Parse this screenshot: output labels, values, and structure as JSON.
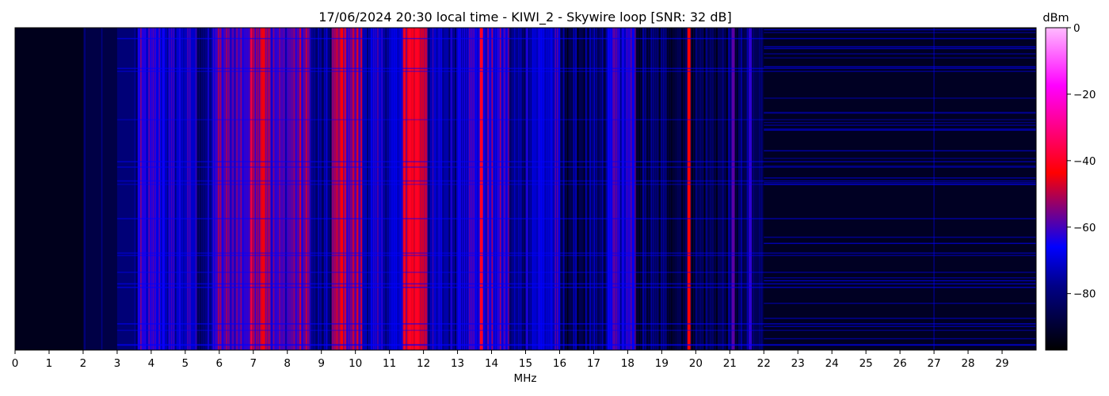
{
  "chart_data": {
    "type": "heatmap",
    "title": "17/06/2024 20:30 local time - KIWI_2 - Skywire loop [SNR: 32 dB]",
    "xlabel": "MHz",
    "ylabel": "",
    "xlim": [
      0,
      30
    ],
    "x_ticks": [
      "0",
      "1",
      "2",
      "3",
      "4",
      "5",
      "6",
      "7",
      "8",
      "9",
      "10",
      "11",
      "12",
      "13",
      "14",
      "15",
      "16",
      "17",
      "18",
      "19",
      "20",
      "21",
      "22",
      "23",
      "24",
      "25",
      "26",
      "27",
      "28",
      "29"
    ],
    "colorbar": {
      "label": "dBm",
      "range": [
        -97,
        0
      ],
      "ticks": [
        {
          "value": 0,
          "label": "0"
        },
        {
          "value": -20,
          "label": "−20"
        },
        {
          "value": -40,
          "label": "−40"
        },
        {
          "value": -60,
          "label": "−60"
        },
        {
          "value": -80,
          "label": "−80"
        }
      ],
      "colormap": [
        "#000000",
        "#000088",
        "#0000ff",
        "#ff0000",
        "#ff00ff",
        "#ffbbff"
      ],
      "colormap_stops": [
        0,
        0.2,
        0.32,
        0.55,
        0.82,
        1
      ]
    },
    "bands": [
      {
        "mhz": [
          0,
          2.0
        ],
        "level_dbm": -93
      },
      {
        "mhz": [
          2.0,
          3.0
        ],
        "level_dbm": -87
      },
      {
        "mhz": [
          3.0,
          3.6
        ],
        "level_dbm": -80
      },
      {
        "mhz": [
          3.6,
          4.4
        ],
        "level_dbm": -66
      },
      {
        "mhz": [
          4.4,
          5.3
        ],
        "level_dbm": -70
      },
      {
        "mhz": [
          5.3,
          5.8
        ],
        "level_dbm": -78
      },
      {
        "mhz": [
          5.8,
          6.9
        ],
        "level_dbm": -60
      },
      {
        "mhz": [
          6.9,
          7.5
        ],
        "level_dbm": -50
      },
      {
        "mhz": [
          7.5,
          8.0
        ],
        "level_dbm": -62
      },
      {
        "mhz": [
          8.0,
          8.7
        ],
        "level_dbm": -58
      },
      {
        "mhz": [
          8.7,
          9.3
        ],
        "level_dbm": -80
      },
      {
        "mhz": [
          9.3,
          10.2
        ],
        "level_dbm": -55
      },
      {
        "mhz": [
          10.2,
          11.4
        ],
        "level_dbm": -72
      },
      {
        "mhz": [
          11.4,
          12.1
        ],
        "level_dbm": -46
      },
      {
        "mhz": [
          12.1,
          13.0
        ],
        "level_dbm": -74
      },
      {
        "mhz": [
          13.0,
          14.5
        ],
        "level_dbm": -64
      },
      {
        "mhz": [
          14.5,
          15.0
        ],
        "level_dbm": -78
      },
      {
        "mhz": [
          15.0,
          16.0
        ],
        "level_dbm": -70
      },
      {
        "mhz": [
          16.0,
          17.4
        ],
        "level_dbm": -84
      },
      {
        "mhz": [
          17.4,
          18.2
        ],
        "level_dbm": -68
      },
      {
        "mhz": [
          18.2,
          22.0
        ],
        "level_dbm": -85
      },
      {
        "mhz": [
          22.0,
          30.0
        ],
        "level_dbm": -92
      }
    ],
    "strong_lines_mhz": [
      {
        "mhz": 7.3,
        "level_dbm": -45
      },
      {
        "mhz": 9.6,
        "level_dbm": -44
      },
      {
        "mhz": 11.6,
        "level_dbm": -40
      },
      {
        "mhz": 11.8,
        "level_dbm": -40
      },
      {
        "mhz": 13.7,
        "level_dbm": -40
      },
      {
        "mhz": 19.8,
        "level_dbm": -44
      },
      {
        "mhz": 21.1,
        "level_dbm": -58
      },
      {
        "mhz": 21.6,
        "level_dbm": -62
      },
      {
        "mhz": 17.6,
        "level_dbm": -58
      }
    ],
    "faint_lines_mhz": [
      {
        "mhz": 2.05,
        "level_dbm": -78
      },
      {
        "mhz": 2.55,
        "level_dbm": -78
      },
      {
        "mhz": 27.0,
        "level_dbm": -80
      }
    ]
  }
}
